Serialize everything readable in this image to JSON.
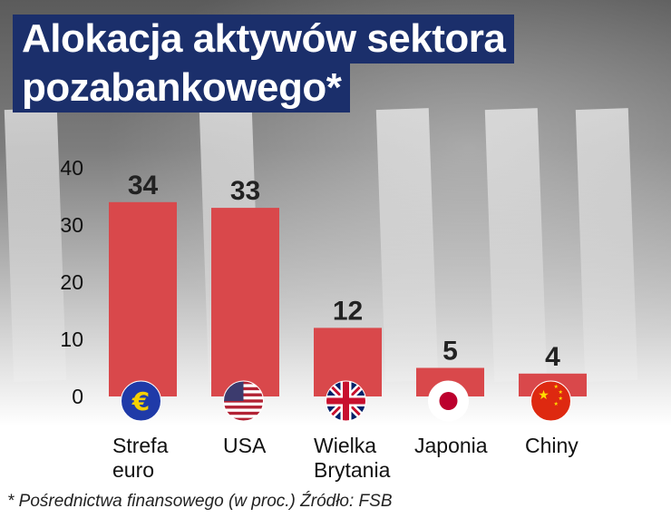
{
  "title_line1": "Alokacja aktywów sektora",
  "title_line2": "pozabankowego*",
  "footnote": "* Pośrednictwa finansowego (w proc.) Źródło: FSB",
  "colors": {
    "bar": "#d9484b",
    "title_bg": "#1b2f6b"
  },
  "chart_data": {
    "type": "bar",
    "title": "Alokacja aktywów sektora pozabankowego*",
    "categories": [
      "Strefa euro",
      "USA",
      "Wielka Brytania",
      "Japonia",
      "Chiny"
    ],
    "category_lines": [
      [
        "Strefa",
        "euro"
      ],
      [
        "USA"
      ],
      [
        "Wielka",
        "Brytania"
      ],
      [
        "Japonia"
      ],
      [
        "Chiny"
      ]
    ],
    "category_icons": [
      "eu-flag-icon",
      "us-flag-icon",
      "uk-flag-icon",
      "japan-flag-icon",
      "china-flag-icon"
    ],
    "values": [
      34,
      33,
      12,
      5,
      4
    ],
    "yticks": [
      0,
      10,
      20,
      30,
      40
    ],
    "ylim": [
      0,
      40
    ],
    "grid": false,
    "legend": "none"
  }
}
